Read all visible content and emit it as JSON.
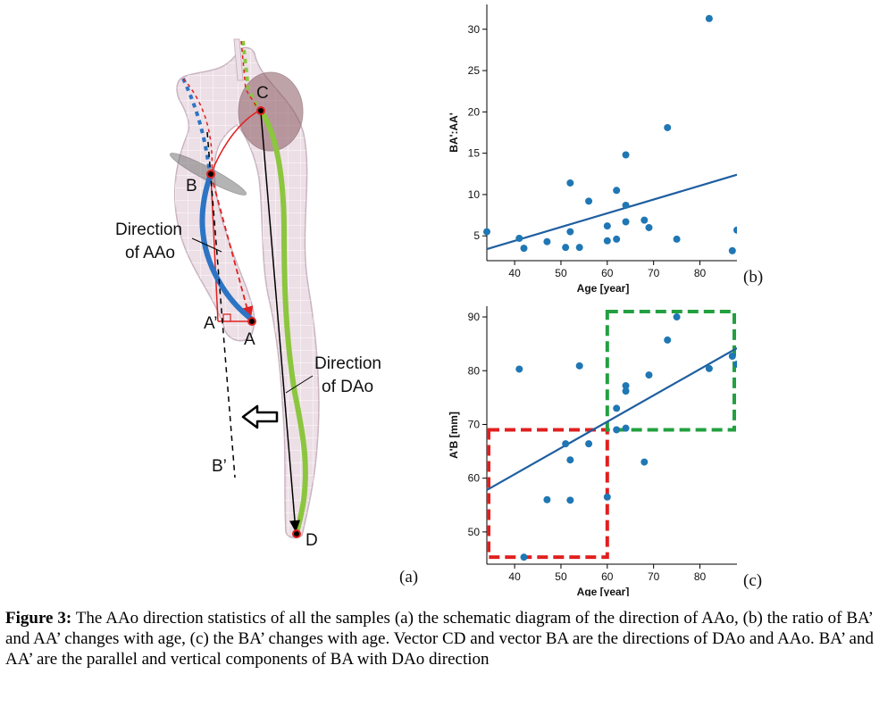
{
  "diagram": {
    "labels": {
      "c": "C",
      "b": "B",
      "a": "A",
      "a_prime": "A’",
      "b_prime": "B’",
      "d": "D",
      "direction_aao_line1": "Direction",
      "direction_aao_line2": "of AAo",
      "direction_dao_line1": "Direction",
      "direction_dao_line2": "of DAo"
    },
    "colors": {
      "aao_curve": "#2d74c4",
      "dao_curve": "#8cc63f",
      "component_lines": "#e02020",
      "vessel_fill": "#eddfe6",
      "vessel_stroke": "#c8b4c0"
    }
  },
  "panels": {
    "a": "(a)",
    "b": "(b)",
    "c": "(c)"
  },
  "chart_data": [
    {
      "type": "scatter",
      "panel": "(b)",
      "xlabel": "Age [year]",
      "ylabel": "BA':AA'",
      "xlim": [
        34,
        88
      ],
      "ylim": [
        2,
        33
      ],
      "xticks": [
        40,
        50,
        60,
        70,
        80
      ],
      "yticks": [
        5,
        10,
        15,
        20,
        25,
        30
      ],
      "grid": false,
      "point_color": "#1f77b4",
      "points": [
        [
          34,
          5.5
        ],
        [
          41,
          4.7
        ],
        [
          42,
          3.5
        ],
        [
          47,
          4.3
        ],
        [
          51,
          3.6
        ],
        [
          52,
          11.4
        ],
        [
          52,
          5.5
        ],
        [
          54,
          3.6
        ],
        [
          56,
          9.2
        ],
        [
          60,
          6.2
        ],
        [
          60,
          4.4
        ],
        [
          62,
          10.5
        ],
        [
          62,
          4.6
        ],
        [
          64,
          14.8
        ],
        [
          64,
          8.7
        ],
        [
          64,
          6.7
        ],
        [
          68,
          6.9
        ],
        [
          69,
          6.0
        ],
        [
          73,
          18.1
        ],
        [
          75,
          4.6
        ],
        [
          82,
          31.3
        ],
        [
          87,
          3.2
        ],
        [
          88,
          5.7
        ]
      ],
      "fit_line": {
        "x": [
          34,
          88
        ],
        "y": [
          3.4,
          12.4
        ]
      }
    },
    {
      "type": "scatter",
      "panel": "(c)",
      "xlabel": "Age [year]",
      "ylabel": "A'B [mm]",
      "xlim": [
        34,
        88
      ],
      "ylim": [
        44,
        92
      ],
      "xticks": [
        40,
        50,
        60,
        70,
        80
      ],
      "yticks": [
        50,
        60,
        70,
        80,
        90
      ],
      "grid": false,
      "point_color": "#1f77b4",
      "points": [
        [
          41,
          80.3
        ],
        [
          42,
          45.3
        ],
        [
          47,
          56
        ],
        [
          51,
          66.4
        ],
        [
          52,
          63.4
        ],
        [
          52,
          55.9
        ],
        [
          54,
          80.9
        ],
        [
          56,
          66.4
        ],
        [
          60,
          56.5
        ],
        [
          62,
          73
        ],
        [
          62,
          69
        ],
        [
          64,
          77.2
        ],
        [
          64,
          76.2
        ],
        [
          64,
          69.3
        ],
        [
          68,
          63
        ],
        [
          69,
          79.2
        ],
        [
          73,
          85.7
        ],
        [
          75,
          90
        ],
        [
          82,
          80.4
        ],
        [
          87,
          82.7
        ],
        [
          88,
          81.2
        ]
      ],
      "fit_line": {
        "x": [
          34,
          88
        ],
        "y": [
          57.8,
          84.2
        ]
      },
      "boxes": [
        {
          "color": "#e02020",
          "x": [
            34,
            60
          ],
          "y": [
            45.3,
            69
          ]
        },
        {
          "color": "#22a040",
          "x": [
            60,
            88
          ],
          "y": [
            69,
            91
          ]
        }
      ]
    }
  ],
  "caption": {
    "label": "Figure 3:",
    "text": " The AAo direction statistics of all the samples (a) the schematic diagram of the direction of AAo, (b) the ratio of BA’ and AA’ changes with age, (c) the BA’ changes with age. Vector CD and vector BA are the directions of DAo and AAo. BA’ and AA’ are the parallel and vertical components of BA with DAo direction"
  }
}
